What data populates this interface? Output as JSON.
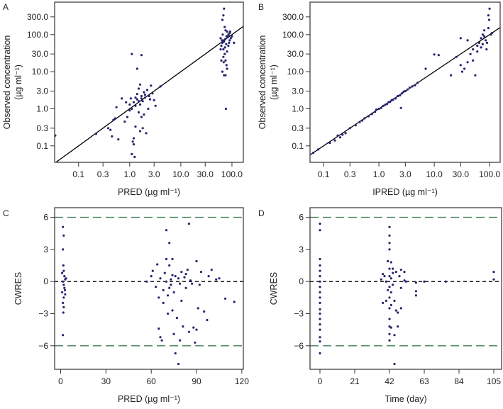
{
  "chart_data": [
    {
      "id": "A",
      "type": "scatter",
      "panel_label": "A",
      "xlabel": "PRED (µg ml⁻¹)",
      "ylabel_line1": "Observed concentration",
      "ylabel_line2": "(µg ml⁻¹)",
      "xscale": "log",
      "yscale": "log",
      "xlim": [
        0.034,
        167
      ],
      "ylim": [
        0.036,
        750
      ],
      "xticks": [
        0.1,
        0.3,
        1,
        3,
        10,
        30,
        100
      ],
      "xtick_labels": [
        "0.1",
        "0.3",
        "1.0",
        "3.0",
        "10.0",
        "30.0",
        "100.0"
      ],
      "yticks": [
        0.1,
        0.3,
        1,
        3,
        10,
        30,
        100,
        300
      ],
      "ytick_labels": [
        "0.1",
        "0.3",
        "1.0",
        "3.0",
        "10.0",
        "30.0",
        "100.0",
        "300.0"
      ],
      "reference_line": "identity",
      "points": [
        [
          0.035,
          0.19
        ],
        [
          0.22,
          0.21
        ],
        [
          0.38,
          0.3
        ],
        [
          0.42,
          0.27
        ],
        [
          0.45,
          0.18
        ],
        [
          0.48,
          0.5
        ],
        [
          0.52,
          0.55
        ],
        [
          0.55,
          1.1
        ],
        [
          0.6,
          0.15
        ],
        [
          0.7,
          1.9
        ],
        [
          0.8,
          0.45
        ],
        [
          0.85,
          1.5
        ],
        [
          0.9,
          0.6
        ],
        [
          1.0,
          0.9
        ],
        [
          1.05,
          1.9
        ],
        [
          1.1,
          0.06
        ],
        [
          1.1,
          30
        ],
        [
          1.15,
          0.13
        ],
        [
          1.2,
          0.16
        ],
        [
          1.2,
          0.11
        ],
        [
          1.25,
          0.05
        ],
        [
          1.3,
          0.33
        ],
        [
          1.3,
          1.2
        ],
        [
          1.4,
          1.8
        ],
        [
          1.4,
          2.5
        ],
        [
          1.5,
          0.8
        ],
        [
          1.5,
          3.5
        ],
        [
          1.6,
          1.3
        ],
        [
          1.6,
          4.5
        ],
        [
          1.6,
          0.25
        ],
        [
          1.7,
          2.2
        ],
        [
          1.7,
          0.6
        ],
        [
          1.7,
          28
        ],
        [
          1.8,
          1.6
        ],
        [
          1.8,
          0.3
        ],
        [
          1.9,
          2.8
        ],
        [
          1.9,
          0.7
        ],
        [
          1.4,
          12
        ],
        [
          2.0,
          2.0
        ],
        [
          2.1,
          0.22
        ],
        [
          2.2,
          3.2
        ],
        [
          2.3,
          1.0
        ],
        [
          2.5,
          1.8
        ],
        [
          2.6,
          4.2
        ],
        [
          2.8,
          2.6
        ],
        [
          3.0,
          1.7
        ],
        [
          3.2,
          1.2
        ],
        [
          4.0,
          4.0
        ],
        [
          1.2,
          1.5
        ],
        [
          1.3,
          2.0
        ],
        [
          1.5,
          1.6
        ],
        [
          1.7,
          1.9
        ],
        [
          2.0,
          2.4
        ],
        [
          1.1,
          1.0
        ],
        [
          1.0,
          1.3
        ],
        [
          2.4,
          2.2
        ],
        [
          70,
          500
        ],
        [
          68,
          330
        ],
        [
          65,
          250
        ],
        [
          72,
          160
        ],
        [
          75,
          130
        ],
        [
          80,
          120
        ],
        [
          85,
          100
        ],
        [
          90,
          110
        ],
        [
          100,
          90
        ],
        [
          110,
          60
        ],
        [
          60,
          80
        ],
        [
          62,
          50
        ],
        [
          65,
          60
        ],
        [
          68,
          40
        ],
        [
          70,
          70
        ],
        [
          72,
          30
        ],
        [
          75,
          20
        ],
        [
          78,
          15
        ],
        [
          65,
          10
        ],
        [
          70,
          8
        ],
        [
          75,
          8
        ],
        [
          80,
          12
        ],
        [
          62,
          20
        ],
        [
          68,
          25
        ],
        [
          85,
          50
        ],
        [
          90,
          70
        ],
        [
          95,
          80
        ],
        [
          78,
          90
        ],
        [
          66,
          100
        ],
        [
          73,
          45
        ],
        [
          80,
          35
        ],
        [
          88,
          60
        ],
        [
          60,
          40
        ],
        [
          76,
          1.0
        ],
        [
          70,
          65
        ],
        [
          74,
          75
        ],
        [
          82,
          85
        ],
        [
          64,
          70
        ],
        [
          86,
          95
        ],
        [
          92,
          120
        ],
        [
          69,
          18
        ],
        [
          77,
          55
        ]
      ]
    },
    {
      "id": "B",
      "type": "scatter",
      "panel_label": "B",
      "xlabel": "IPRED (µg ml⁻¹)",
      "ylabel_line1": "Observed concentration",
      "ylabel_line2": "(µg ml⁻¹)",
      "xscale": "log",
      "yscale": "log",
      "xlim": [
        0.057,
        155
      ],
      "ylim": [
        0.036,
        750
      ],
      "xticks": [
        0.1,
        0.3,
        1,
        3,
        10,
        30,
        100
      ],
      "xtick_labels": [
        "0.1",
        "0.3",
        "1.0",
        "3.0",
        "10.0",
        "30.0",
        "100.0"
      ],
      "yticks": [
        0.1,
        0.3,
        1,
        3,
        10,
        30,
        100,
        300
      ],
      "ytick_labels": [
        "0.1",
        "0.3",
        "1.0",
        "3.0",
        "10.0",
        "30.0",
        "100.0",
        "300.0"
      ],
      "reference_line": "identity",
      "points": [
        [
          0.065,
          0.065
        ],
        [
          0.08,
          0.08
        ],
        [
          0.13,
          0.12
        ],
        [
          0.16,
          0.14
        ],
        [
          0.18,
          0.19
        ],
        [
          0.2,
          0.17
        ],
        [
          0.22,
          0.2
        ],
        [
          0.25,
          0.22
        ],
        [
          0.3,
          0.3
        ],
        [
          0.38,
          0.36
        ],
        [
          0.45,
          0.44
        ],
        [
          0.5,
          0.48
        ],
        [
          0.55,
          0.55
        ],
        [
          0.65,
          0.63
        ],
        [
          0.75,
          0.72
        ],
        [
          0.85,
          0.83
        ],
        [
          0.9,
          0.95
        ],
        [
          1.0,
          1.0
        ],
        [
          1.1,
          1.05
        ],
        [
          1.2,
          1.2
        ],
        [
          1.3,
          1.28
        ],
        [
          1.4,
          1.35
        ],
        [
          1.5,
          1.5
        ],
        [
          1.6,
          1.55
        ],
        [
          1.7,
          1.7
        ],
        [
          1.8,
          1.75
        ],
        [
          2.0,
          1.9
        ],
        [
          2.2,
          2.2
        ],
        [
          2.4,
          2.3
        ],
        [
          2.5,
          1.05
        ],
        [
          2.6,
          2.6
        ],
        [
          2.8,
          2.9
        ],
        [
          3.0,
          3.0
        ],
        [
          3.3,
          3.3
        ],
        [
          3.6,
          3.7
        ],
        [
          4.0,
          4.0
        ],
        [
          4.5,
          4.3
        ],
        [
          5.0,
          5.0
        ],
        [
          7,
          12
        ],
        [
          10,
          29
        ],
        [
          12,
          28
        ],
        [
          20,
          8
        ],
        [
          25,
          25
        ],
        [
          30,
          15
        ],
        [
          32,
          10
        ],
        [
          35,
          12
        ],
        [
          40,
          18
        ],
        [
          45,
          30
        ],
        [
          50,
          40
        ],
        [
          55,
          8
        ],
        [
          60,
          50
        ],
        [
          65,
          60
        ],
        [
          70,
          80
        ],
        [
          75,
          100
        ],
        [
          80,
          130
        ],
        [
          85,
          70
        ],
        [
          90,
          60
        ],
        [
          95,
          150
        ],
        [
          100,
          500
        ],
        [
          95,
          330
        ],
        [
          98,
          250
        ],
        [
          110,
          110
        ],
        [
          70,
          45
        ],
        [
          60,
          35
        ],
        [
          80,
          90
        ],
        [
          30,
          80
        ],
        [
          40,
          70
        ],
        [
          50,
          20
        ],
        [
          88,
          40
        ],
        [
          75,
          55
        ],
        [
          105,
          100
        ]
      ]
    },
    {
      "id": "C",
      "type": "scatter",
      "panel_label": "C",
      "xlabel": "PRED (µg ml⁻¹)",
      "ylabel": "CWRES",
      "xscale": "linear",
      "yscale": "linear",
      "xlim": [
        -4,
        121
      ],
      "ylim": [
        -8.2,
        6.9
      ],
      "xticks": [
        0,
        30,
        60,
        90,
        120
      ],
      "xtick_labels": [
        "0",
        "30",
        "60",
        "90",
        "120"
      ],
      "yticks": [
        6,
        3,
        0,
        -3,
        -6
      ],
      "ytick_labels": [
        "6",
        "3",
        "0",
        "−3",
        "−6"
      ],
      "hlines": [
        {
          "y": 0,
          "style": "dashed",
          "color": "#000000"
        },
        {
          "y": 6,
          "style": "dashed",
          "color": "#3f7f55"
        },
        {
          "y": -6,
          "style": "dashed",
          "color": "#3f7f55"
        }
      ],
      "points": [
        [
          1.5,
          5.1
        ],
        [
          2,
          4.3
        ],
        [
          1.5,
          3.0
        ],
        [
          1.8,
          1.5
        ],
        [
          2,
          1.0
        ],
        [
          1,
          0.8
        ],
        [
          2.5,
          0.5
        ],
        [
          3,
          0.2
        ],
        [
          1.5,
          0
        ],
        [
          2,
          -0.3
        ],
        [
          2.5,
          -0.6
        ],
        [
          1,
          -1.0
        ],
        [
          3,
          -1.2
        ],
        [
          2,
          -1.5
        ],
        [
          1.5,
          -2.0
        ],
        [
          2,
          -2.4
        ],
        [
          1.8,
          -2.9
        ],
        [
          1.5,
          -5.0
        ],
        [
          3.5,
          0.3
        ],
        [
          2.8,
          -0.8
        ],
        [
          57,
          0
        ],
        [
          60,
          0.5
        ],
        [
          61,
          1.0
        ],
        [
          63,
          -0.5
        ],
        [
          64,
          1.6
        ],
        [
          65,
          -1.5
        ],
        [
          65,
          -4.4
        ],
        [
          66,
          -5.2
        ],
        [
          67,
          -5.5
        ],
        [
          68,
          -2.0
        ],
        [
          69,
          0.8
        ],
        [
          70,
          2.1
        ],
        [
          70,
          4.8
        ],
        [
          71,
          -3.0
        ],
        [
          72,
          3.6
        ],
        [
          72,
          1.5
        ],
        [
          73,
          0.2
        ],
        [
          73,
          -0.3
        ],
        [
          74,
          0.6
        ],
        [
          74,
          2.1
        ],
        [
          75,
          -1.0
        ],
        [
          75,
          -4.9
        ],
        [
          76,
          -6.7
        ],
        [
          77,
          -3.4
        ],
        [
          78,
          -7.7
        ],
        [
          78,
          0.3
        ],
        [
          79,
          -5.5
        ],
        [
          80,
          -1.8
        ],
        [
          80,
          0.9
        ],
        [
          81,
          -4.2
        ],
        [
          82,
          0.4
        ],
        [
          83,
          -0.6
        ],
        [
          84,
          1.1
        ],
        [
          85,
          5.4
        ],
        [
          85,
          -4.7
        ],
        [
          87,
          -0.2
        ],
        [
          88,
          -4.3
        ],
        [
          89,
          -5.7
        ],
        [
          90,
          1.9
        ],
        [
          90,
          -4.5
        ],
        [
          91,
          -2.5
        ],
        [
          93,
          0.9
        ],
        [
          95,
          -2.8
        ],
        [
          97,
          -3.6
        ],
        [
          98,
          0.5
        ],
        [
          100,
          1.1
        ],
        [
          103,
          0.2
        ],
        [
          105,
          0.3
        ],
        [
          109,
          -1.6
        ],
        [
          115,
          -1.9
        ],
        [
          66,
          0.3
        ],
        [
          68,
          -0.8
        ],
        [
          70,
          0.0
        ],
        [
          72,
          -0.6
        ],
        [
          76,
          0.5
        ],
        [
          79,
          -0.2
        ],
        [
          83,
          0.7
        ],
        [
          86,
          0.1
        ],
        [
          92,
          -0.3
        ],
        [
          71,
          -1.3
        ],
        [
          74,
          -2.7
        ]
      ]
    },
    {
      "id": "D",
      "type": "scatter",
      "panel_label": "D",
      "xlabel": "Time (day)",
      "ylabel": "CWRES",
      "xscale": "linear",
      "yscale": "linear",
      "xlim": [
        -6,
        109.7
      ],
      "ylim": [
        -8.2,
        6.9
      ],
      "xticks": [
        0,
        21,
        42,
        63,
        84,
        105
      ],
      "xtick_labels": [
        "0",
        "21",
        "42",
        "63",
        "84",
        "105"
      ],
      "yticks": [
        6,
        3,
        0,
        -3,
        -6
      ],
      "ytick_labels": [
        "6",
        "3",
        "0",
        "−3",
        "−6"
      ],
      "hlines": [
        {
          "y": 0,
          "style": "dashed",
          "color": "#000000"
        },
        {
          "y": 6,
          "style": "dashed",
          "color": "#3f7f55"
        },
        {
          "y": -6,
          "style": "dashed",
          "color": "#3f7f55"
        }
      ],
      "points": [
        [
          0,
          5.4
        ],
        [
          0,
          4.8
        ],
        [
          0,
          2.1
        ],
        [
          0,
          1.5
        ],
        [
          0,
          1.0
        ],
        [
          0,
          0.5
        ],
        [
          0,
          0
        ],
        [
          0,
          -0.5
        ],
        [
          0,
          -1.0
        ],
        [
          0,
          -1.5
        ],
        [
          0,
          -2.0
        ],
        [
          0,
          -2.6
        ],
        [
          0,
          -3.0
        ],
        [
          0,
          -3.5
        ],
        [
          0,
          -4.0
        ],
        [
          0,
          -4.5
        ],
        [
          0,
          -5.2
        ],
        [
          0,
          -5.6
        ],
        [
          0,
          -6.7
        ],
        [
          37,
          0.2
        ],
        [
          38,
          -2.0
        ],
        [
          39,
          0.5
        ],
        [
          40,
          -1.8
        ],
        [
          41,
          1.9
        ],
        [
          42,
          5.1
        ],
        [
          42,
          4.3
        ],
        [
          42,
          3.6
        ],
        [
          42,
          3.0
        ],
        [
          42,
          1.2
        ],
        [
          42,
          0.5
        ],
        [
          42,
          -0.5
        ],
        [
          42,
          -1.5
        ],
        [
          42,
          -2.5
        ],
        [
          42,
          -3.5
        ],
        [
          42,
          -4.2
        ],
        [
          42,
          -4.9
        ],
        [
          42,
          -5.5
        ],
        [
          43,
          1.8
        ],
        [
          43,
          0.3
        ],
        [
          43,
          -1.0
        ],
        [
          43,
          -2.2
        ],
        [
          43,
          -4.3
        ],
        [
          44,
          0.8
        ],
        [
          44,
          -0.3
        ],
        [
          45,
          -7.7
        ],
        [
          45,
          -5.0
        ],
        [
          45,
          -1.8
        ],
        [
          46,
          0.9
        ],
        [
          46,
          -2.7
        ],
        [
          47,
          -4.2
        ],
        [
          47,
          -2.9
        ],
        [
          48,
          0.5
        ],
        [
          49,
          1.1
        ],
        [
          49,
          -0.6
        ],
        [
          49,
          -2.5
        ],
        [
          51,
          0.9
        ],
        [
          51,
          0.1
        ],
        [
          52,
          0
        ],
        [
          58,
          -0.1
        ],
        [
          58,
          -0.9
        ],
        [
          58,
          -1.3
        ],
        [
          63,
          0
        ],
        [
          76,
          0
        ],
        [
          105,
          0.9
        ],
        [
          105,
          0.2
        ],
        [
          40,
          0.0
        ],
        [
          41,
          -0.8
        ],
        [
          44,
          1.2
        ],
        [
          38,
          0.7
        ]
      ]
    }
  ],
  "colors": {
    "points": "#25256f",
    "axis": "#333333",
    "reference": "#000000",
    "limits": "#3f7f55"
  }
}
